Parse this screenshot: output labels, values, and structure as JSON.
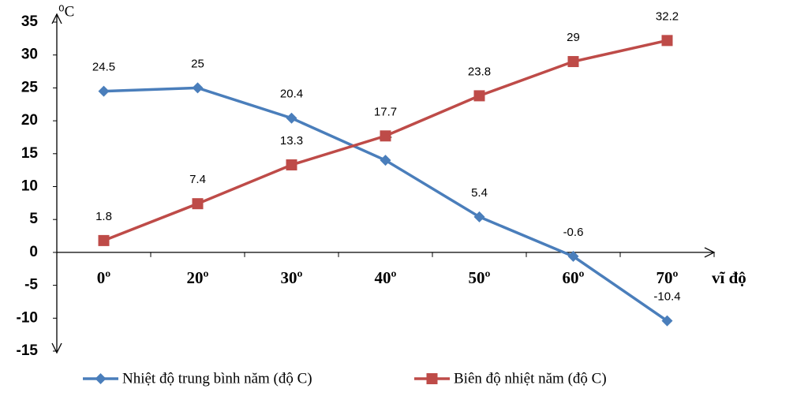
{
  "chart_data": {
    "type": "line",
    "y_axis_label": "⁰C",
    "x_axis_label": "vĩ độ",
    "categories": [
      "0º",
      "20º",
      "30º",
      "40º",
      "50º",
      "60º",
      "70º"
    ],
    "series": [
      {
        "name": "Nhiệt độ trung bình năm (độ C)",
        "color": "#4a7ebb",
        "marker": "diamond",
        "values": [
          24.5,
          25,
          20.4,
          14,
          5.4,
          -0.6,
          -10.4
        ]
      },
      {
        "name": "Biên độ nhiệt năm (độ C)",
        "color": "#be4b48",
        "marker": "square",
        "values": [
          1.8,
          7.4,
          13.3,
          17.7,
          23.8,
          29,
          32.2
        ]
      }
    ],
    "ylim": [
      -15,
      35
    ],
    "yticks": [
      35,
      30,
      25,
      20,
      15,
      10,
      5,
      0,
      -5,
      -10,
      -15
    ],
    "grid": false,
    "legend": "bottom"
  }
}
